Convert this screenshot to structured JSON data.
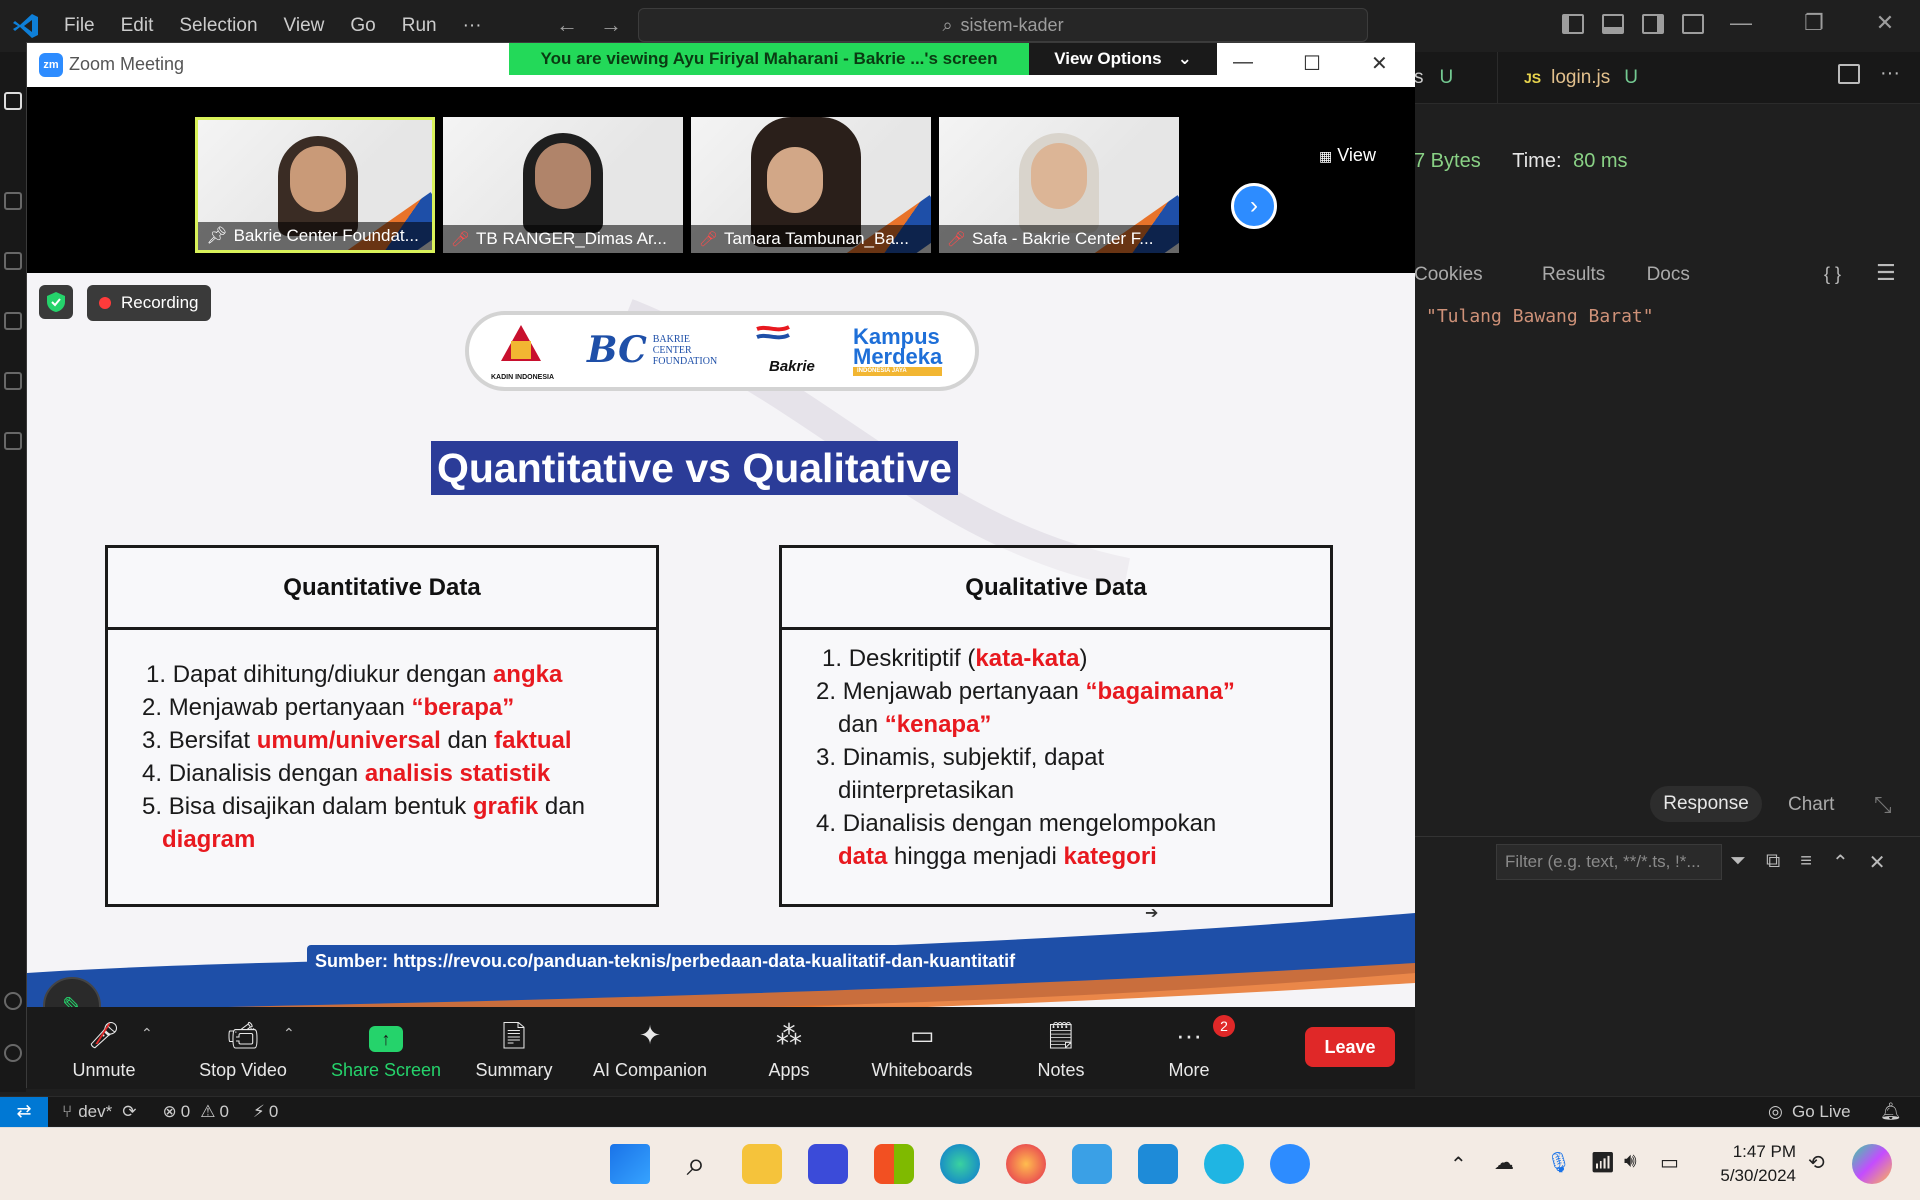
{
  "vscode": {
    "menu": [
      "File",
      "Edit",
      "Selection",
      "View",
      "Go",
      "Run",
      "···"
    ],
    "search_text": "sistem-kader",
    "tab_partial": "s",
    "tab_partial_status": "U",
    "tab_login_icon": "JS",
    "tab_login": "login.js",
    "tab_login_status": "U",
    "size_partial": "7 Bytes",
    "time_label": "Time:",
    "time_value": "80 ms",
    "result_tabs": [
      "Cookies",
      "Results",
      "Docs"
    ],
    "braces": "{ }",
    "code_line": "\"Tulang Bawang Barat\"",
    "response_label": "Response",
    "chart_label": "Chart",
    "filter_placeholder": "Filter (e.g. text, **/*.ts, !*..."
  },
  "status_bar": {
    "branch": "dev*",
    "errors": "0",
    "warnings": "0",
    "ports": "0",
    "go_live": "Go Live"
  },
  "taskbar": {
    "time": "1:47 PM",
    "date": "5/30/2024"
  },
  "zoom": {
    "window_title": "Zoom Meeting",
    "logo_text": "zm",
    "viewing_banner": "You are viewing Ayu Firiyal Maharani - Bakrie ...'s screen",
    "view_options": "View Options",
    "view_button": "View",
    "participants": [
      {
        "name": "Bakrie Center Foundat..."
      },
      {
        "name": "TB RANGER_Dimas Ar..."
      },
      {
        "name": "Tamara Tambunan_Ba..."
      },
      {
        "name": "Safa - Bakrie Center F..."
      }
    ],
    "recording": "Recording",
    "toolbar": {
      "unmute": "Unmute",
      "stop_video": "Stop Video",
      "share_screen": "Share Screen",
      "summary": "Summary",
      "ai_companion": "AI Companion",
      "apps": "Apps",
      "whiteboards": "Whiteboards",
      "notes": "Notes",
      "more": "More",
      "more_badge": "2",
      "leave": "Leave"
    }
  },
  "slide": {
    "logos": {
      "kadin": "KADIN INDONESIA",
      "bcf": "BAKRIE CENTER FOUNDATION",
      "bakrie": "Bakrie",
      "kampus_merdeka_1": "Kampus",
      "kampus_merdeka_2": "Merdeka",
      "kampus_merdeka_3": "INDONESIA JAYA"
    },
    "title": "Quantitative vs Qualitative",
    "quant_title": "Quantitative Data",
    "quant_items": [
      {
        "n": "1.",
        "a": "Dapat dihitung/diukur dengan ",
        "b": "angka"
      },
      {
        "n": "2.",
        "a": "Menjawab pertanyaan ",
        "b": "“berapa”"
      },
      {
        "n": "3.",
        "a": "Bersifat ",
        "b": "umum/universal",
        "c": " dan ",
        "d": "faktual"
      },
      {
        "n": "4.",
        "a": "Dianalisis dengan ",
        "b": "analisis statistik"
      },
      {
        "n": "5.",
        "a": "Bisa disajikan dalam bentuk ",
        "b": "grafik",
        "c": " dan"
      },
      {
        "b": "diagram"
      }
    ],
    "qual_title": "Qualitative Data",
    "qual_items": [
      {
        "n": "1.",
        "a": "Deskritiptif (",
        "b": "kata-kata",
        "c": ")"
      },
      {
        "n": "2.",
        "a": "Menjawab pertanyaan ",
        "b": "“bagaimana”"
      },
      {
        "a": "dan ",
        "b": "“kenapa”"
      },
      {
        "n": "3.",
        "a": "Dinamis, subjektif, dapat"
      },
      {
        "a": "diinterpretasikan"
      },
      {
        "n": "4.",
        "a": "Dianalisis dengan mengelompokan"
      },
      {
        "b": "data",
        "a": " hingga menjadi ",
        "d": "kategori"
      }
    ],
    "source": "Sumber: https://revou.co/panduan-teknis/perbedaan-data-kualitatif-dan-kuantitatif"
  }
}
